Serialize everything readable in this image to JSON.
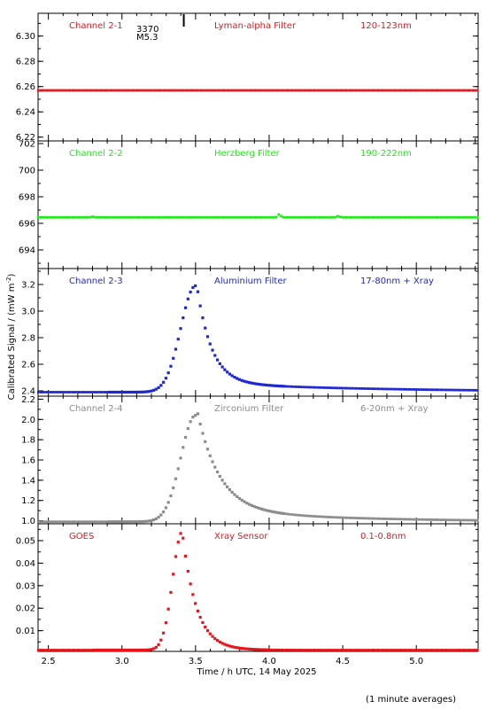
{
  "x_axis": {
    "label": "Time / h UTC, 14 May 2025",
    "range": [
      2.43,
      5.42
    ],
    "ticks": [
      "2.5",
      "3.0",
      "3.5",
      "4.0",
      "4.5",
      "5.0"
    ]
  },
  "y_axis_label": "Calibrated Signal / (mW m",
  "y_axis_label_sup": "-2",
  "y_axis_label_end": ")",
  "footnote": "(1 minute averages)",
  "flare_marker": {
    "time": 3.42,
    "label_top": "3370",
    "label_bottom": "M5.3"
  },
  "chart_data": [
    {
      "type": "scatter",
      "name_label": "Channel 2-1",
      "filter_label": "Lyman-alpha Filter",
      "band_label": "120-123nm",
      "color": "#e8141a",
      "ylim": [
        6.217,
        6.318
      ],
      "yticks": [
        "6.22",
        "6.24",
        "6.26",
        "6.28",
        "6.30"
      ],
      "curve": {
        "base": 6.257,
        "peak": 0.0,
        "t_peak": 3.45,
        "rise": 0.1,
        "decay": 0.3,
        "tail": 0.0,
        "tail_decay": 1.0
      },
      "bumps": []
    },
    {
      "type": "scatter",
      "name_label": "Channel 2-2",
      "filter_label": "Herzberg Filter",
      "band_label": "190-222nm",
      "color": "#22e81a",
      "ylim": [
        692.6,
        702.2
      ],
      "yticks": [
        "694",
        "696",
        "698",
        "700",
        "702"
      ],
      "curve": {
        "base": 696.45,
        "peak": 0.0,
        "t_peak": 3.45,
        "rise": 0.1,
        "decay": 0.3,
        "tail": 0.0,
        "tail_decay": 1.0
      },
      "bumps": [
        {
          "t": 4.07,
          "dv": 0.25
        },
        {
          "t": 4.47,
          "dv": 0.1
        },
        {
          "t": 2.8,
          "dv": 0.05
        }
      ]
    },
    {
      "type": "scatter",
      "name_label": "Channel 2-3",
      "filter_label": "Aluminium Filter",
      "band_label": "17-80nm + Xray",
      "color": "#1e28d2",
      "ylim": [
        2.36,
        3.32
      ],
      "yticks": [
        "2.4",
        "2.6",
        "2.8",
        "3.0",
        "3.2"
      ],
      "curve": {
        "base": 2.39,
        "peak": 0.8,
        "t_peak": 3.5,
        "rise": 0.1,
        "decay": 0.1,
        "tail": 0.07,
        "tail_decay": 1.2
      },
      "bumps": []
    },
    {
      "type": "scatter",
      "name_label": "Channel 2-4",
      "filter_label": "Zirconium Filter",
      "band_label": "6-20nm + Xray",
      "color": "#8c8c8c",
      "ylim": [
        0.97,
        2.23
      ],
      "yticks": [
        "1.0",
        "1.2",
        "1.4",
        "1.6",
        "1.8",
        "2.0",
        "2.2"
      ],
      "curve": {
        "base": 0.99,
        "peak": 1.05,
        "t_peak": 3.5,
        "rise": 0.1,
        "decay": 0.15,
        "tail": 0.12,
        "tail_decay": 0.9
      },
      "bumps": []
    },
    {
      "type": "scatter",
      "name_label": "GOES",
      "filter_label": "Xray Sensor",
      "band_label": "0.1-0.8nm",
      "color": "#e8141a",
      "ylim": [
        0.0008,
        0.0575
      ],
      "yticks": [
        "0.01",
        "0.02",
        "0.03",
        "0.04",
        "0.05"
      ],
      "curve": {
        "base": 0.0014,
        "peak": 0.0526,
        "t_peak": 3.41,
        "rise": 0.065,
        "decay": 0.095,
        "tail": 0.0,
        "tail_decay": 1.0
      },
      "bumps": []
    }
  ]
}
